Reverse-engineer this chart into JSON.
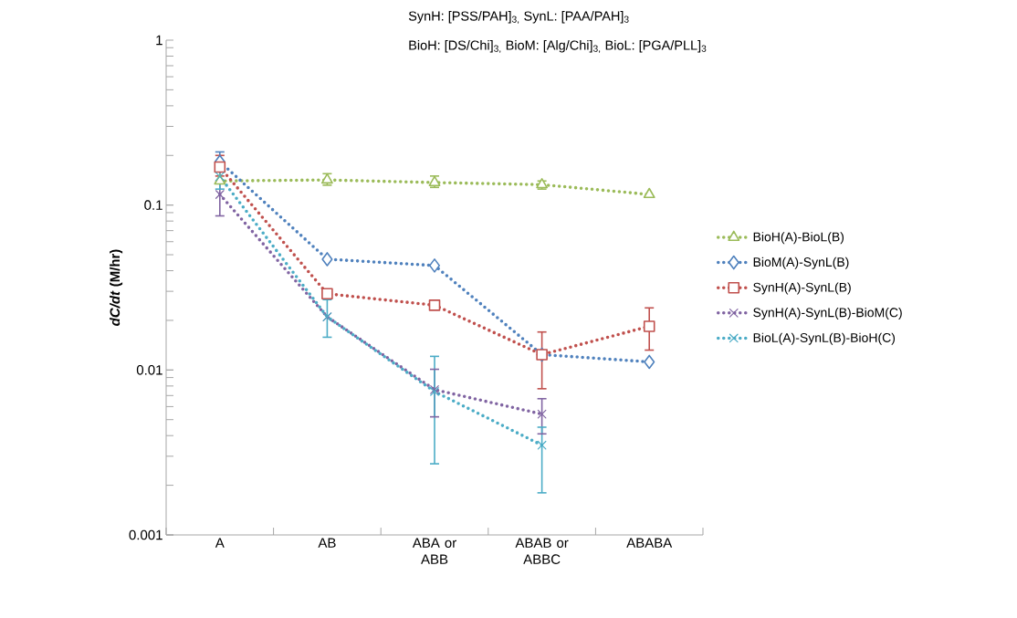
{
  "chart_data": {
    "type": "line",
    "ylabel": "*dC/dt* (M/hr)",
    "categories": [
      "A",
      "AB",
      "ABA or ABB",
      "ABAB or ABBC",
      "ABABA"
    ],
    "log": "y",
    "ylim": [
      0.001,
      1
    ],
    "yticks": [
      0.001,
      0.01,
      0.1,
      1
    ],
    "grid": false,
    "legend": "right",
    "line_style": "dotted",
    "annotations": [
      "SynH: [PSS/PAH]$_{3,}$  SynL: [PAA/PAH]$_{3}$",
      "BioH: [DS/Chi]$_{3,}$  BioM: [Alg/Chi]$_{3,}$  BioL: [PGA/PLL]$_{3}$"
    ],
    "series": [
      {
        "name": "BioH(A)-BioL(B)",
        "color": "#9bbb59",
        "marker": "triangle",
        "values": [
          0.14,
          0.142,
          0.137,
          0.133,
          0.116
        ],
        "errors": [
          null,
          [
            0.132,
            0.155
          ],
          [
            0.128,
            0.15
          ],
          [
            0.125,
            0.14
          ],
          null
        ]
      },
      {
        "name": "BioM(A)-SynL(B)",
        "color": "#4f81bd",
        "marker": "diamond",
        "values": [
          0.183,
          0.047,
          0.043,
          0.0124,
          0.0112
        ],
        "errors": [
          [
            0.16,
            0.21
          ],
          null,
          null,
          null,
          null
        ]
      },
      {
        "name": "SynH(A)-SynL(B)",
        "color": "#c0504d",
        "marker": "square",
        "values": [
          0.17,
          0.029,
          0.0247,
          0.0124,
          0.0184
        ],
        "errors": [
          [
            0.15,
            0.2
          ],
          null,
          null,
          [
            0.0077,
            0.017
          ],
          [
            0.0132,
            0.0238
          ]
        ]
      },
      {
        "name": "SynH(A)-SynL(B)-BioM(C)",
        "color": "#8064a2",
        "marker": "cross",
        "values": [
          0.116,
          0.021,
          0.0076,
          0.0054,
          null
        ],
        "errors": [
          [
            0.086,
            0.14
          ],
          null,
          [
            0.0052,
            0.0101
          ],
          [
            0.0041,
            0.0067
          ],
          null
        ]
      },
      {
        "name": "BioL(A)-SynL(B)-BioH(C)",
        "color": "#4bacc6",
        "marker": "cross",
        "values": [
          0.149,
          0.021,
          0.0074,
          0.0035,
          null
        ],
        "errors": [
          [
            0.125,
            0.18
          ],
          [
            0.0158,
            0.0267
          ],
          [
            0.0027,
            0.0121
          ],
          [
            0.0018,
            0.0045
          ],
          null
        ]
      }
    ]
  }
}
